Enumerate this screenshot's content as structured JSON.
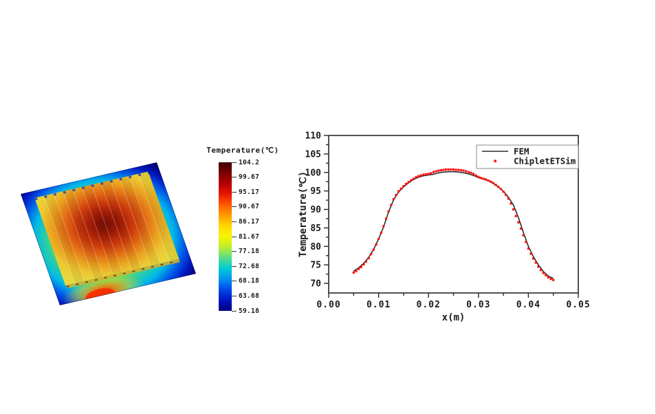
{
  "colorbar": {
    "title": "Temperature(℃)",
    "ticks": [
      "104.2",
      "99.67",
      "95.17",
      "90.67",
      "86.17",
      "81.67",
      "77.18",
      "72.68",
      "68.18",
      "63.68",
      "59.18"
    ],
    "gradient_top_to_bottom": [
      "#3a0000",
      "#7a0000",
      "#b40000",
      "#e81600",
      "#ff5a00",
      "#ff9c00",
      "#ffd800",
      "#f8f400",
      "#b8ee30",
      "#58dc88",
      "#00ccd4",
      "#0092f4",
      "#0048e8",
      "#0014c0",
      "#000080"
    ]
  },
  "chart_data": {
    "type": "line",
    "title": "",
    "xlabel": "x(m)",
    "ylabel": "Temperature(℃)",
    "xlim": [
      0,
      0.05
    ],
    "ylim": [
      67.4,
      110
    ],
    "xticks": [
      0,
      0.01,
      0.02,
      0.03,
      0.04,
      0.05
    ],
    "xtick_labels": [
      "0.00",
      "0.01",
      "0.02",
      "0.03",
      "0.04",
      "0.05"
    ],
    "x_minor_ticks": [
      0.005,
      0.015,
      0.025,
      0.035,
      0.045
    ],
    "yticks": [
      70,
      75,
      80,
      85,
      90,
      95,
      100,
      105,
      110
    ],
    "y_minor_ticks": [
      72.5,
      77.5,
      82.5,
      87.5,
      92.5,
      97.5,
      102.5,
      107.5
    ],
    "grid": false,
    "legend_position": "top-right",
    "axis_color": "#262626",
    "series": [
      {
        "name": "FEM",
        "type": "line",
        "color": "#2b2b2b",
        "x": [
          0.005,
          0.006,
          0.007,
          0.008,
          0.009,
          0.01,
          0.011,
          0.012,
          0.013,
          0.014,
          0.015,
          0.016,
          0.017,
          0.018,
          0.019,
          0.02,
          0.021,
          0.022,
          0.023,
          0.024,
          0.025,
          0.026,
          0.027,
          0.028,
          0.029,
          0.03,
          0.031,
          0.032,
          0.033,
          0.034,
          0.035,
          0.036,
          0.037,
          0.038,
          0.039,
          0.04,
          0.041,
          0.042,
          0.043,
          0.044,
          0.045
        ],
        "y": [
          73.3,
          74.2,
          75.4,
          77.0,
          79.2,
          82.0,
          85.3,
          89.3,
          92.6,
          94.7,
          96.1,
          97.2,
          98.1,
          98.7,
          99.1,
          99.3,
          99.5,
          99.9,
          100.1,
          100.2,
          100.2,
          100.1,
          99.9,
          99.6,
          99.2,
          98.6,
          98.2,
          97.7,
          97.0,
          96.1,
          94.9,
          93.3,
          91.2,
          87.8,
          83.8,
          80.0,
          77.2,
          75.0,
          73.2,
          72.0,
          71.3
        ]
      },
      {
        "name": "ChipletETSim",
        "type": "scatter",
        "color": "#fa100c",
        "x": [
          0.005,
          0.0055,
          0.006,
          0.0065,
          0.007,
          0.0075,
          0.008,
          0.0085,
          0.009,
          0.0095,
          0.01,
          0.0105,
          0.011,
          0.0115,
          0.012,
          0.0125,
          0.013,
          0.0135,
          0.014,
          0.0145,
          0.015,
          0.0155,
          0.016,
          0.0165,
          0.017,
          0.0175,
          0.018,
          0.0185,
          0.019,
          0.0195,
          0.02,
          0.0205,
          0.021,
          0.0215,
          0.022,
          0.0225,
          0.023,
          0.0235,
          0.024,
          0.0245,
          0.025,
          0.0255,
          0.026,
          0.0265,
          0.027,
          0.0275,
          0.028,
          0.0285,
          0.029,
          0.0295,
          0.03,
          0.0305,
          0.031,
          0.0315,
          0.032,
          0.0325,
          0.033,
          0.0335,
          0.034,
          0.0345,
          0.035,
          0.0355,
          0.036,
          0.0365,
          0.037,
          0.0375,
          0.038,
          0.0385,
          0.039,
          0.0395,
          0.04,
          0.0405,
          0.041,
          0.0415,
          0.042,
          0.0425,
          0.043,
          0.0435,
          0.044,
          0.0445,
          0.045
        ],
        "y": [
          72.9,
          73.3,
          73.9,
          74.4,
          75.1,
          75.9,
          76.8,
          77.9,
          79.1,
          80.5,
          82.0,
          83.7,
          85.5,
          87.5,
          89.5,
          91.2,
          92.8,
          93.9,
          94.9,
          95.6,
          96.3,
          96.9,
          97.4,
          97.9,
          98.3,
          98.7,
          99.0,
          99.2,
          99.4,
          99.5,
          99.6,
          99.8,
          100.1,
          100.3,
          100.5,
          100.6,
          100.7,
          100.8,
          100.8,
          100.8,
          100.8,
          100.7,
          100.7,
          100.6,
          100.5,
          100.3,
          100.1,
          99.9,
          99.6,
          99.2,
          98.8,
          98.5,
          98.3,
          98.1,
          97.8,
          97.5,
          97.1,
          96.6,
          96.1,
          95.5,
          94.8,
          93.9,
          92.9,
          91.6,
          90.0,
          88.2,
          86.5,
          84.8,
          83.0,
          81.2,
          79.4,
          78.0,
          76.7,
          75.6,
          74.5,
          73.6,
          72.8,
          72.2,
          71.6,
          71.2,
          70.9
        ]
      }
    ],
    "legend": [
      "FEM",
      "ChipletETSim"
    ]
  }
}
